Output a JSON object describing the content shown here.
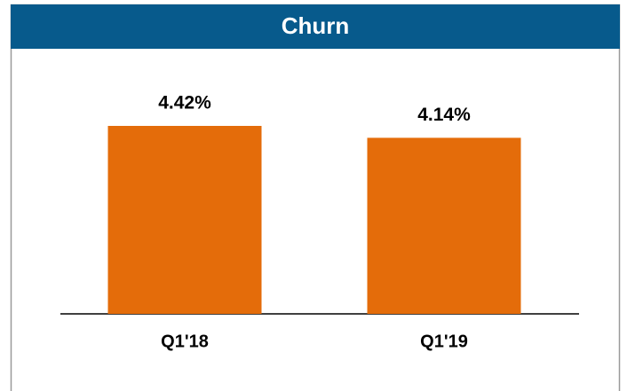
{
  "chart_data": {
    "type": "bar",
    "title": "Churn",
    "categories": [
      "Q1'18",
      "Q1'19"
    ],
    "values": [
      4.42,
      4.14
    ],
    "value_labels": [
      "4.42%",
      "4.14%"
    ],
    "color": "#e46c0a"
  }
}
